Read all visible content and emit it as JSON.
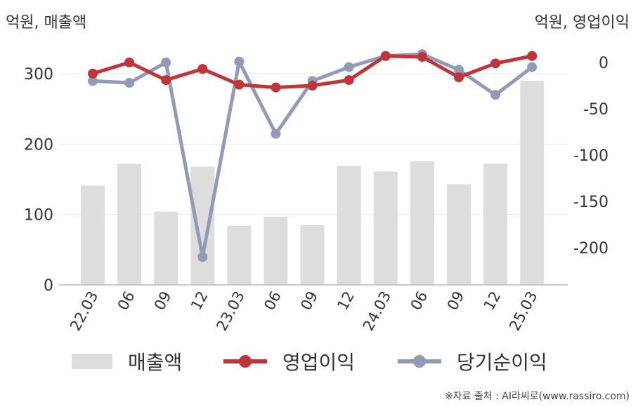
{
  "unit_left": "억원, 매출액",
  "unit_right": "억원, 영업이익",
  "source": "※자료 출처 : AI라씨로(www.rassiro.com)",
  "legend": [
    {
      "label": "매출액",
      "type": "bar",
      "color": "#dddddd"
    },
    {
      "label": "영업이익",
      "type": "line",
      "color": "#c0353a"
    },
    {
      "label": "당기순이익",
      "type": "line",
      "color": "#8f9bb8"
    }
  ],
  "chart_data": {
    "type": "bar",
    "categories": [
      "22.03",
      "06",
      "09",
      "12",
      "23.03",
      "06",
      "09",
      "12",
      "24.03",
      "06",
      "09",
      "12",
      "25.03"
    ],
    "y_left": {
      "ylim": [
        0,
        330
      ],
      "ticks": [
        0,
        100,
        200,
        300
      ]
    },
    "y_right": {
      "ylim": [
        -240,
        12
      ],
      "ticks": [
        -200,
        -150,
        -100,
        -50,
        0
      ]
    },
    "series": [
      {
        "name": "매출액",
        "type": "bar",
        "axis": "left",
        "color": "#dddddd",
        "values": [
          141,
          172,
          104,
          168,
          84,
          97,
          85,
          169,
          161,
          176,
          143,
          172,
          290
        ]
      },
      {
        "name": "영업이익",
        "type": "line",
        "axis": "right",
        "color": "#c0353a",
        "values": [
          -12,
          0,
          -19,
          -7,
          -24,
          -27,
          -25,
          -19,
          7,
          6,
          -16,
          -1,
          7
        ]
      },
      {
        "name": "당기순이익",
        "type": "line",
        "axis": "right",
        "color": "#8f9bb8",
        "values": [
          -20,
          -22,
          0,
          -210,
          1,
          -77,
          -20,
          -5,
          7,
          9,
          -8,
          -35,
          -5
        ]
      }
    ]
  }
}
